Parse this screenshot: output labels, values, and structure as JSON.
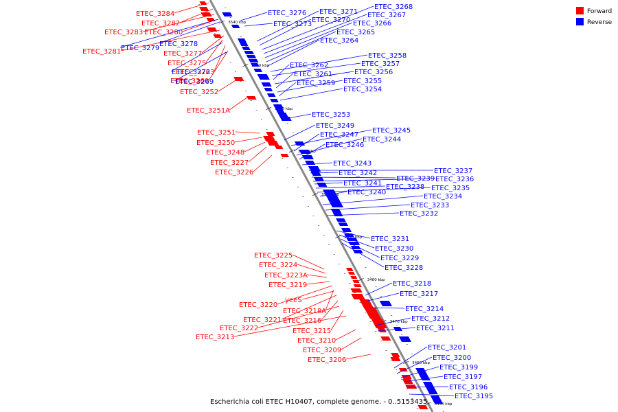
{
  "colors": {
    "forward": "#ff0000",
    "reverse": "#0000ff",
    "axis": "#888888",
    "text": "#000000"
  },
  "legend": {
    "forward": "Forward",
    "reverse": "Reverse"
  },
  "caption": "Escherichia coli ETEC H10407, complete genome. - 0..5153435",
  "ticks": [
    "3540 kbp",
    "3530 kbp",
    "3520 kbp",
    "3510 kbp",
    "3500 kbp",
    "3490 kbp",
    "3480 kbp",
    "3470 kbp",
    "3460 kbp",
    "3450 kbp"
  ],
  "forward_labels": [
    "ETEC_3284",
    "ETEC_3282",
    "ETEC_3283",
    "ETEC_3280",
    "ETEC_3281",
    "ETEC_3277",
    "ETEC_3275",
    "ETEC_3263",
    "ETEC_3260",
    "ETEC_3252",
    "ETEC_3251A",
    "ETEC_3251",
    "ETEC_3250",
    "ETEC_3248",
    "ETEC_3227",
    "ETEC_3226",
    "ETEC_3225",
    "ETEC_3224",
    "ETEC_3223A",
    "ETEC_3219",
    "ETEC_3220",
    "ETEC_3218A",
    "ETEC_3221",
    "ETEC_3216",
    "ETEC_3222",
    "ETEC_3215",
    "ETEC_3213",
    "ETEC_3210",
    "ETEC_3209",
    "ETEC_3206"
  ],
  "reverse_labels": [
    "ETEC_3279",
    "ETEC_3278",
    "ETEC_3272",
    "ETEC_3269",
    "ETEC_3276",
    "ETEC_3273",
    "ETEC_3271",
    "ETEC_3270",
    "ETEC_3268",
    "ETEC_3267",
    "ETEC_3266",
    "ETEC_3265",
    "ETEC_3264",
    "ETEC_3258",
    "ETEC_3257",
    "ETEC_3262",
    "ETEC_3256",
    "ETEC_3261",
    "ETEC_3255",
    "ETEC_3259",
    "ETEC_3254",
    "ETEC_3253",
    "ETEC_3249",
    "ETEC_3245",
    "ETEC_3247",
    "ETEC_3244",
    "ETEC_3246",
    "ETEC_3243",
    "ETEC_3237",
    "ETEC_3242",
    "ETEC_3239",
    "ETEC_3236",
    "ETEC_3241",
    "ETEC_3238",
    "ETEC_3235",
    "ETEC_3240",
    "ETEC_3234",
    "ETEC_3233",
    "ETEC_3232",
    "ETEC_3231",
    "ETEC_3230",
    "ETEC_3229",
    "ETEC_3228",
    "ETEC_3218",
    "ETEC_3217",
    "ETEC_3214",
    "ETEC_3212",
    "ETEC_3211",
    "ETEC_3201",
    "ETEC_3200",
    "ETEC_3199",
    "ETEC_3197",
    "ETEC_3196",
    "ETEC_3195"
  ],
  "gene_label_yeeS": "yeeS"
}
